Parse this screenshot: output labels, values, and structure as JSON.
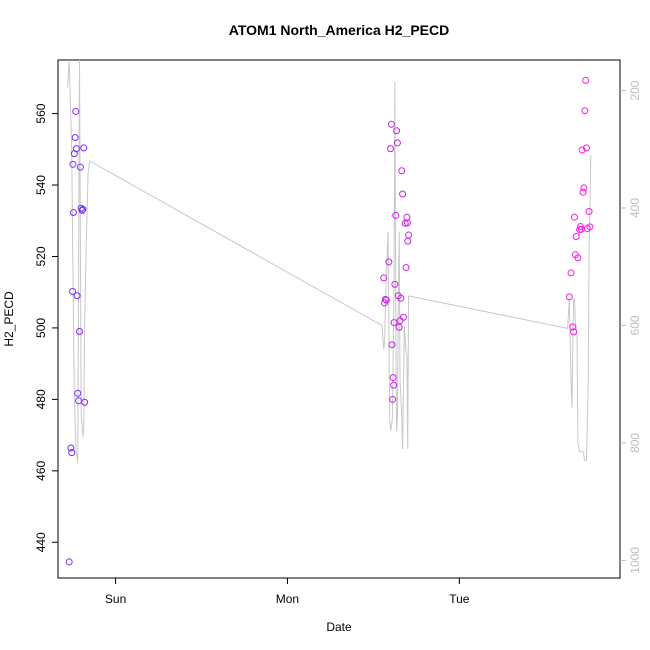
{
  "chart_data": {
    "type": "scatter",
    "title": "ATOM1 North_America H2_PECD",
    "xlabel": "Date",
    "ylabel": "H2_PECD",
    "x_ticks": [
      {
        "label": "Sun",
        "day": 1.0
      },
      {
        "label": "Mon",
        "day": 2.0
      },
      {
        "label": "Tue",
        "day": 3.0
      }
    ],
    "xlim_days": [
      0.665,
      3.935
    ],
    "ylim": [
      430,
      575
    ],
    "y_ticks": [
      440,
      460,
      480,
      500,
      520,
      540,
      560
    ],
    "y2_ticks": [
      200,
      400,
      600,
      800,
      1000
    ],
    "y2lim_reversed": [
      1030,
      148
    ],
    "grid": false,
    "legend": "none",
    "colors": {
      "scatter_start": "#7a2cff",
      "scatter_end": "#ff1ae0",
      "line": "#c8c8c8",
      "right_axis": "#bdbdbd"
    },
    "series": [
      {
        "type": "scatter",
        "points": [
          [
            0.73,
            434.5
          ],
          [
            0.74,
            466.4
          ],
          [
            0.745,
            465.1
          ],
          [
            0.75,
            510.2
          ],
          [
            0.752,
            545.8
          ],
          [
            0.755,
            532.3
          ],
          [
            0.76,
            548.8
          ],
          [
            0.765,
            553.3
          ],
          [
            0.768,
            560.6
          ],
          [
            0.772,
            550.2
          ],
          [
            0.776,
            509.0
          ],
          [
            0.78,
            481.7
          ],
          [
            0.785,
            479.6
          ],
          [
            0.79,
            499.0
          ],
          [
            0.795,
            545.0
          ],
          [
            0.8,
            533.5
          ],
          [
            0.805,
            532.9
          ],
          [
            0.81,
            533.2
          ],
          [
            0.815,
            550.4
          ],
          [
            0.82,
            479.2
          ],
          [
            2.56,
            514.0
          ],
          [
            2.565,
            507.0
          ],
          [
            2.57,
            508.0
          ],
          [
            2.575,
            507.8
          ],
          [
            2.59,
            518.5
          ],
          [
            2.6,
            550.2
          ],
          [
            2.605,
            557.0
          ],
          [
            2.608,
            495.3
          ],
          [
            2.612,
            480.0
          ],
          [
            2.615,
            486.1
          ],
          [
            2.618,
            484.0
          ],
          [
            2.62,
            501.5
          ],
          [
            2.625,
            512.2
          ],
          [
            2.63,
            531.5
          ],
          [
            2.635,
            555.2
          ],
          [
            2.64,
            551.8
          ],
          [
            2.645,
            509.0
          ],
          [
            2.65,
            500.2
          ],
          [
            2.655,
            502.0
          ],
          [
            2.66,
            508.3
          ],
          [
            2.665,
            544.0
          ],
          [
            2.67,
            537.5
          ],
          [
            2.675,
            503.0
          ],
          [
            2.685,
            529.3
          ],
          [
            2.69,
            516.9
          ],
          [
            2.695,
            531.0
          ],
          [
            2.698,
            529.4
          ],
          [
            2.7,
            524.3
          ],
          [
            2.705,
            526.0
          ],
          [
            3.64,
            508.7
          ],
          [
            3.65,
            515.4
          ],
          [
            3.66,
            500.3
          ],
          [
            3.665,
            498.9
          ],
          [
            3.67,
            531.0
          ],
          [
            3.675,
            520.5
          ],
          [
            3.68,
            525.6
          ],
          [
            3.69,
            519.6
          ],
          [
            3.7,
            527.5
          ],
          [
            3.705,
            528.4
          ],
          [
            3.71,
            527.6
          ],
          [
            3.715,
            549.8
          ],
          [
            3.72,
            538.0
          ],
          [
            3.725,
            539.2
          ],
          [
            3.73,
            560.8
          ],
          [
            3.735,
            569.3
          ],
          [
            3.74,
            550.4
          ],
          [
            3.745,
            527.8
          ],
          [
            3.755,
            532.6
          ],
          [
            3.76,
            528.3
          ]
        ]
      },
      {
        "type": "line",
        "axis": "right",
        "points": [
          [
            0.72,
            195
          ],
          [
            0.73,
            100
          ],
          [
            0.745,
            300
          ],
          [
            0.755,
            600
          ],
          [
            0.76,
            720
          ],
          [
            0.77,
            810
          ],
          [
            0.78,
            835
          ],
          [
            0.79,
            100
          ],
          [
            0.8,
            750
          ],
          [
            0.81,
            790
          ],
          [
            0.815,
            770
          ],
          [
            0.82,
            600
          ],
          [
            0.83,
            450
          ],
          [
            0.84,
            340
          ],
          [
            0.85,
            320
          ],
          [
            2.55,
            600
          ],
          [
            2.56,
            640
          ],
          [
            2.565,
            630
          ],
          [
            2.575,
            520
          ],
          [
            2.585,
            440
          ],
          [
            2.595,
            760
          ],
          [
            2.6,
            780
          ],
          [
            2.61,
            760
          ],
          [
            2.615,
            660
          ],
          [
            2.62,
            530
          ],
          [
            2.625,
            185
          ],
          [
            2.63,
            560
          ],
          [
            2.635,
            780
          ],
          [
            2.64,
            760
          ],
          [
            2.645,
            560
          ],
          [
            2.65,
            440
          ],
          [
            2.655,
            690
          ],
          [
            2.665,
            755
          ],
          [
            2.67,
            810
          ],
          [
            2.68,
            600
          ],
          [
            2.69,
            645
          ],
          [
            2.695,
            650
          ],
          [
            2.7,
            810
          ],
          [
            2.705,
            550
          ],
          [
            2.71,
            550
          ],
          [
            3.63,
            605
          ],
          [
            3.64,
            555
          ],
          [
            3.65,
            690
          ],
          [
            3.655,
            740
          ],
          [
            3.66,
            650
          ],
          [
            3.665,
            555
          ],
          [
            3.67,
            555
          ],
          [
            3.675,
            595
          ],
          [
            3.685,
            615
          ],
          [
            3.69,
            800
          ],
          [
            3.7,
            815
          ],
          [
            3.71,
            815
          ],
          [
            3.72,
            815
          ],
          [
            3.73,
            830
          ],
          [
            3.74,
            830
          ],
          [
            3.75,
            700
          ],
          [
            3.755,
            470
          ],
          [
            3.76,
            400
          ],
          [
            3.765,
            310
          ]
        ]
      }
    ]
  }
}
